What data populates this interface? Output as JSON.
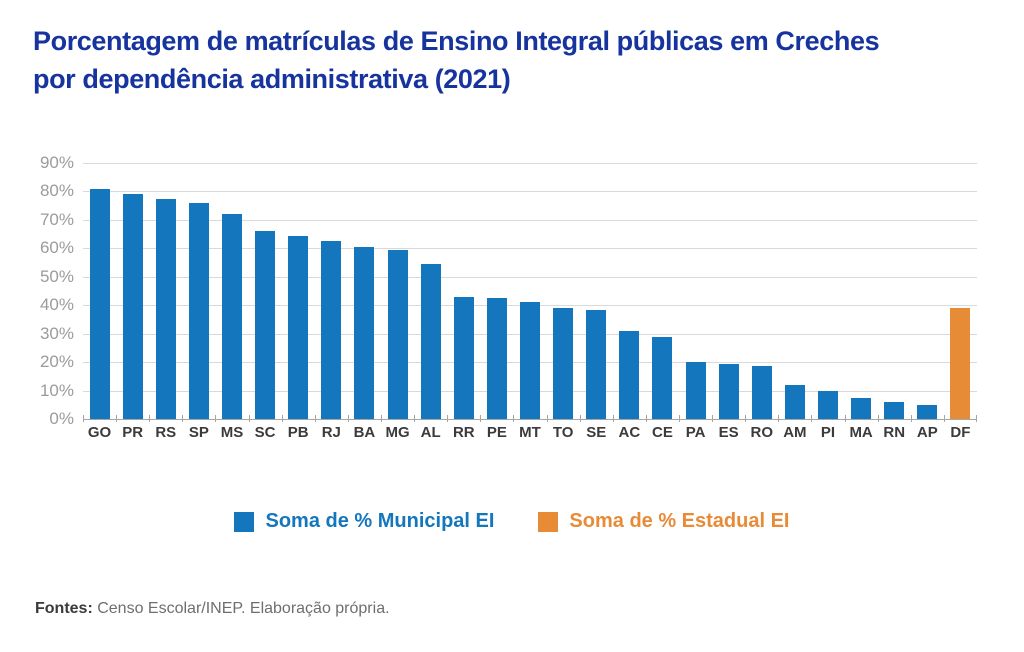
{
  "title": {
    "line1": "Porcentagem de matrículas de Ensino Integral públicas em Creches",
    "line2": "por dependência administrativa (2021)"
  },
  "chart_data": {
    "type": "bar",
    "title": "Porcentagem de matrículas de Ensino Integral públicas em Creches por dependência administrativa (2021)",
    "categories": [
      "GO",
      "PR",
      "RS",
      "SP",
      "MS",
      "SC",
      "PB",
      "RJ",
      "BA",
      "MG",
      "AL",
      "RR",
      "PE",
      "MT",
      "TO",
      "SE",
      "AC",
      "CE",
      "PA",
      "ES",
      "RO",
      "AM",
      "PI",
      "MA",
      "RN",
      "AP",
      "DF"
    ],
    "values": [
      81,
      79,
      77.5,
      76,
      72,
      66,
      64.5,
      62.5,
      60.5,
      59.5,
      54.5,
      43,
      42.5,
      41,
      39,
      38.5,
      31,
      29,
      20,
      19.5,
      18.5,
      12,
      10,
      7.5,
      6,
      5,
      39
    ],
    "bar_series": [
      "municipal",
      "municipal",
      "municipal",
      "municipal",
      "municipal",
      "municipal",
      "municipal",
      "municipal",
      "municipal",
      "municipal",
      "municipal",
      "municipal",
      "municipal",
      "municipal",
      "municipal",
      "municipal",
      "municipal",
      "municipal",
      "municipal",
      "municipal",
      "municipal",
      "municipal",
      "municipal",
      "municipal",
      "municipal",
      "municipal",
      "estadual"
    ],
    "series": [
      {
        "key": "municipal",
        "name": "Soma de % Municipal EI",
        "color": "#1476BD"
      },
      {
        "key": "estadual",
        "name": "Soma de % Estadual EI",
        "color": "#E78B37"
      }
    ],
    "xlabel": "",
    "ylabel": "",
    "ylim": [
      0,
      90
    ],
    "ytick_step": 10,
    "ytick_suffix": "%",
    "grid": true,
    "legend_position": "bottom"
  },
  "footer": {
    "label": "Fontes:",
    "text": " Censo Escolar/INEP. Elaboração própria."
  },
  "colors": {
    "title": "#16339E",
    "municipal_bar": "#1476BD",
    "estadual_bar": "#E78B37",
    "axis_value_labels": "#9B9B9B",
    "category_labels": "#3B3B3B",
    "gridline": "#D9D9D9",
    "axis_line": "#A6A6A6",
    "footer_label": "#3A3A3A",
    "footer_text": "#6E6E6E",
    "background": "#FFFFFF"
  }
}
